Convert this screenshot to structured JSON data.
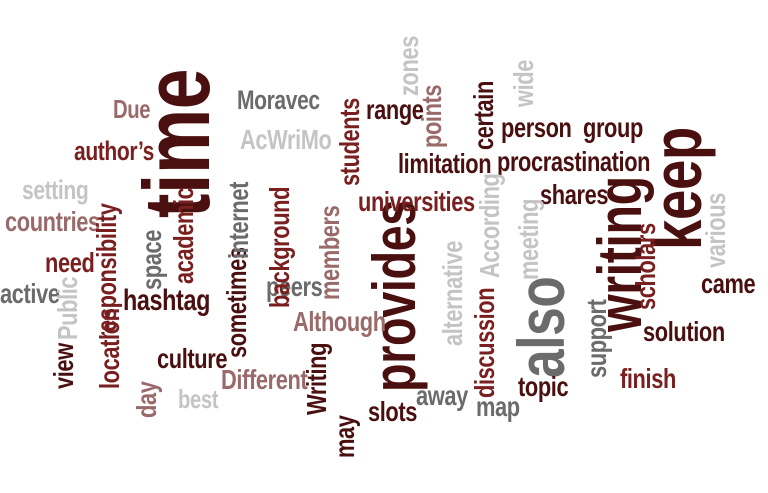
{
  "colors": {
    "dark": "#4a1010",
    "maroon": "#7a1f1f",
    "rose": "#9a6a6a",
    "gray": "#6b6b6b",
    "light": "#c4c4c4"
  },
  "words": {
    "time": "time",
    "provides": "provides",
    "writing": "writing",
    "keep": "keep",
    "also": "also",
    "moravec": "Moravec",
    "acwrimo": "AcWriMo",
    "due": "Due",
    "authors": "author’s",
    "setting": "setting",
    "countries": "countries",
    "need": "need",
    "active": "active",
    "public": "Public",
    "view": "view",
    "location": "location",
    "responsibility": "responsibility",
    "space": "space",
    "academic": "academic",
    "hashtag": "hashtag",
    "day": "day",
    "best": "best",
    "culture": "culture",
    "different": "Different",
    "sometimes": "sometimes",
    "internet": "internet",
    "background": "background",
    "peers": "peers",
    "although": "Although",
    "members": "members",
    "writing_cap": "Writing",
    "may": "may",
    "students": "students",
    "range": "range",
    "points": "points",
    "zones": "zones",
    "certain": "certain",
    "wide": "wide",
    "person": "person",
    "group": "group",
    "limitation": "limitation",
    "procrastination": "procrastination",
    "universities": "universities",
    "shares": "shares",
    "according": "According",
    "alternative": "alternative",
    "meeting": "meeting",
    "discussion": "discussion",
    "away": "away",
    "slots": "slots",
    "map": "map",
    "topic": "topic",
    "support": "support",
    "scholars": "scholars",
    "finish": "finish",
    "solution": "solution",
    "came": "came",
    "various": "various"
  }
}
